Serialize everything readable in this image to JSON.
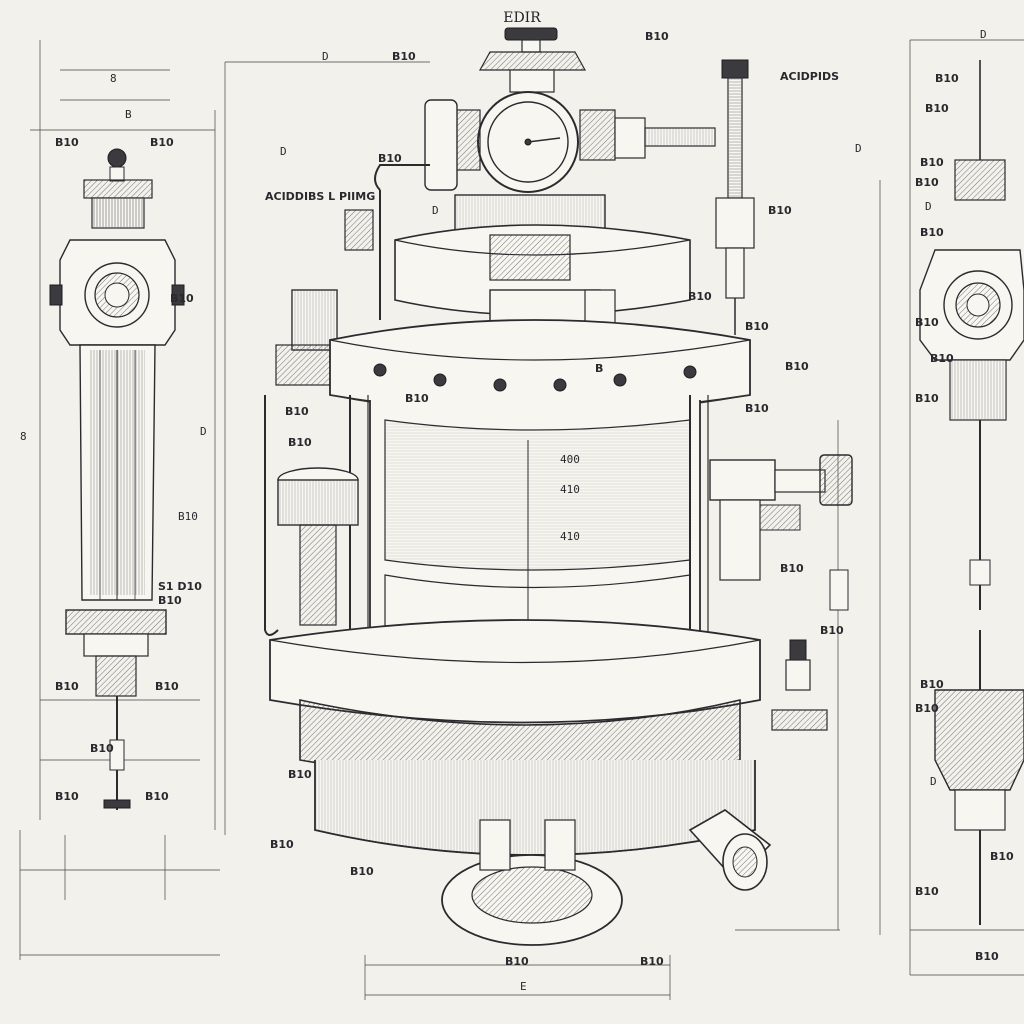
{
  "title": "EDIR",
  "colors": {
    "paper": "#f2f1ec",
    "ink": "#2b2b2f"
  },
  "left_view": {
    "labels": [
      "8",
      "B",
      "B10",
      "B10",
      "B10",
      "8",
      "B10",
      "D",
      "S1 D10",
      "B10",
      "B10",
      "B10",
      "B10",
      "B10",
      "B10"
    ]
  },
  "center_view": {
    "labels": [
      "D",
      "D",
      "B10",
      "B10",
      "B10",
      "ACIDDIBS L PIIMG",
      "D",
      "B",
      "ACIDPIDS",
      "D",
      "B10",
      "B10",
      "B10",
      "B10",
      "B10",
      "B10",
      "B10",
      "B10",
      "B10",
      "B10",
      "B10",
      "B10",
      "B10",
      "B10",
      "E",
      "B10"
    ]
  },
  "center_readouts": [
    "400",
    "410",
    "410"
  ],
  "right_view": {
    "labels": [
      "D",
      "B10",
      "B10",
      "B10",
      "B10",
      "D",
      "B10",
      "B10",
      "B10",
      "B10",
      "B10",
      "B10",
      "D",
      "B10",
      "B10",
      "B10"
    ]
  },
  "icons": [
    "gauge-icon",
    "valve-icon",
    "bolt-icon"
  ]
}
